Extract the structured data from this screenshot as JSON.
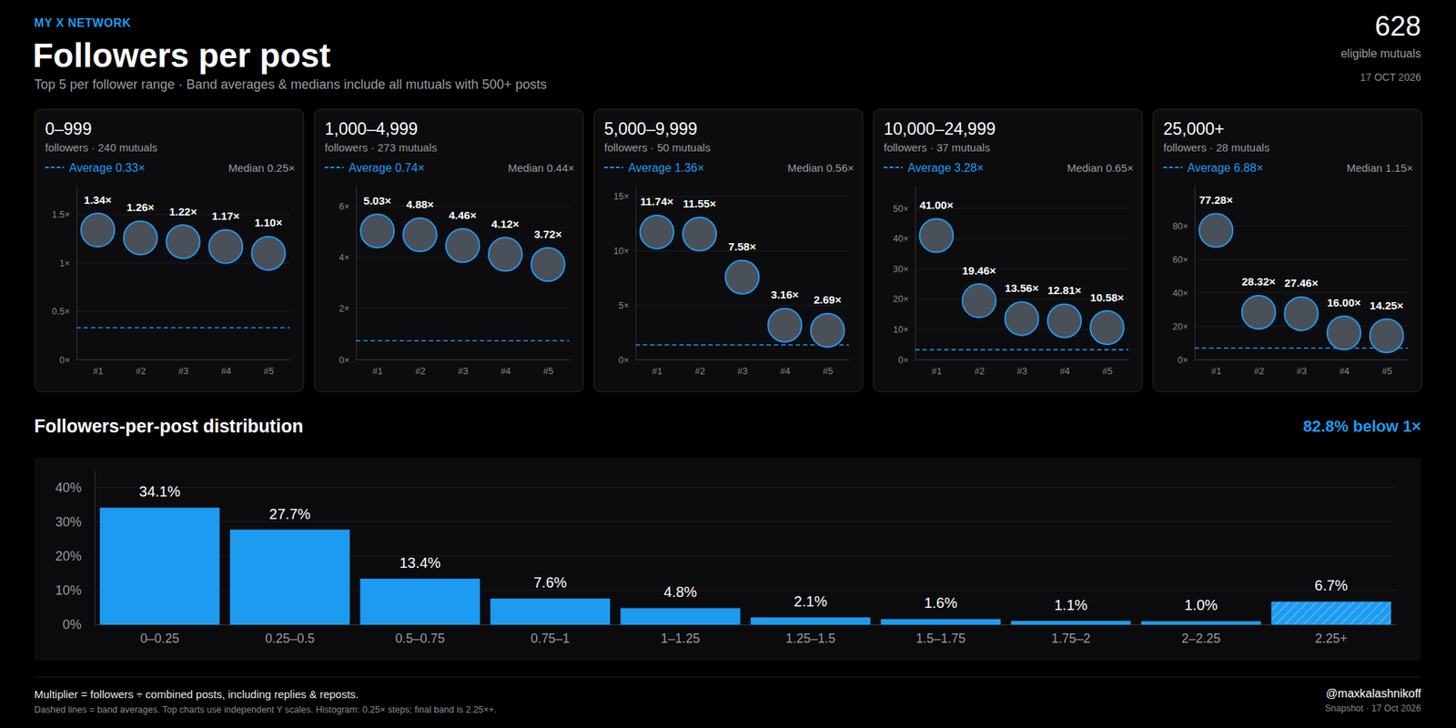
{
  "header": {
    "kicker": "MY X NETWORK",
    "title": "Followers per post",
    "subtitle": "Top 5 per follower range · Band averages & medians include all mutuals with 500+ posts",
    "count": 628,
    "count_label": "eligible mutuals",
    "date": "17 OCT 2026"
  },
  "chart_data": [
    {
      "type": "dot",
      "title": "0–999",
      "subtitle": "followers · 240 mutuals",
      "average": 0.33,
      "average_label": "Average 0.33×",
      "median_label": "Median 0.25×",
      "categories": [
        "#1",
        "#2",
        "#3",
        "#4",
        "#5"
      ],
      "values": [
        1.34,
        1.26,
        1.22,
        1.17,
        1.1
      ],
      "value_labels": [
        "1.34×",
        "1.26×",
        "1.22×",
        "1.17×",
        "1.10×"
      ],
      "ylim": [
        0,
        1.8
      ],
      "yticks": [
        {
          "value": 0,
          "label": "0×"
        },
        {
          "value": 0.5,
          "label": "0.5×"
        },
        {
          "value": 1,
          "label": "1×"
        },
        {
          "value": 1.5,
          "label": "1.5×"
        }
      ],
      "grid": true,
      "data_labels": true,
      "marker": "circle",
      "color": "#1d9bf0"
    },
    {
      "type": "dot",
      "title": "1,000–4,999",
      "subtitle": "followers · 273 mutuals",
      "average": 0.74,
      "average_label": "Average 0.74×",
      "median_label": "Median 0.44×",
      "categories": [
        "#1",
        "#2",
        "#3",
        "#4",
        "#5"
      ],
      "values": [
        5.03,
        4.88,
        4.46,
        4.12,
        3.72
      ],
      "value_labels": [
        "5.03×",
        "4.88×",
        "4.46×",
        "4.12×",
        "3.72×"
      ],
      "ylim": [
        0,
        6.8
      ],
      "yticks": [
        {
          "value": 0,
          "label": "0×"
        },
        {
          "value": 2,
          "label": "2×"
        },
        {
          "value": 4,
          "label": "4×"
        },
        {
          "value": 6,
          "label": "6×"
        }
      ],
      "grid": true,
      "data_labels": true,
      "marker": "circle",
      "color": "#1d9bf0"
    },
    {
      "type": "dot",
      "title": "5,000–9,999",
      "subtitle": "followers · 50 mutuals",
      "average": 1.36,
      "average_label": "Average 1.36×",
      "median_label": "Median 0.56×",
      "categories": [
        "#1",
        "#2",
        "#3",
        "#4",
        "#5"
      ],
      "values": [
        11.74,
        11.55,
        7.58,
        3.16,
        2.69
      ],
      "value_labels": [
        "11.74×",
        "11.55×",
        "7.58×",
        "3.16×",
        "2.69×"
      ],
      "ylim": [
        0,
        16
      ],
      "yticks": [
        {
          "value": 0,
          "label": "0×"
        },
        {
          "value": 5,
          "label": "5×"
        },
        {
          "value": 10,
          "label": "10×"
        },
        {
          "value": 15,
          "label": "15×"
        }
      ],
      "grid": true,
      "data_labels": true,
      "marker": "circle",
      "color": "#1d9bf0"
    },
    {
      "type": "dot",
      "title": "10,000–24,999",
      "subtitle": "followers · 37 mutuals",
      "average": 3.28,
      "average_label": "Average 3.28×",
      "median_label": "Median 0.65×",
      "categories": [
        "#1",
        "#2",
        "#3",
        "#4",
        "#5"
      ],
      "values": [
        41.0,
        19.46,
        13.56,
        12.81,
        10.58
      ],
      "value_labels": [
        "41.00×",
        "19.46×",
        "13.56×",
        "12.81×",
        "10.58×"
      ],
      "ylim": [
        0,
        57.5
      ],
      "yticks": [
        {
          "value": 0,
          "label": "0×"
        },
        {
          "value": 10,
          "label": "10×"
        },
        {
          "value": 20,
          "label": "20×"
        },
        {
          "value": 30,
          "label": "30×"
        },
        {
          "value": 40,
          "label": "40×"
        },
        {
          "value": 50,
          "label": "50×"
        }
      ],
      "grid": true,
      "data_labels": true,
      "marker": "circle",
      "color": "#1d9bf0"
    },
    {
      "type": "dot",
      "title": "25,000+",
      "subtitle": "followers · 28 mutuals",
      "average": 6.88,
      "average_label": "Average 6.88×",
      "median_label": "Median 1.15×",
      "categories": [
        "#1",
        "#2",
        "#3",
        "#4",
        "#5"
      ],
      "values": [
        77.28,
        28.32,
        27.46,
        16.0,
        14.25
      ],
      "value_labels": [
        "77.28×",
        "28.32×",
        "27.46×",
        "16.00×",
        "14.25×"
      ],
      "ylim": [
        0,
        104
      ],
      "yticks": [
        {
          "value": 0,
          "label": "0×"
        },
        {
          "value": 20,
          "label": "20×"
        },
        {
          "value": 40,
          "label": "40×"
        },
        {
          "value": 60,
          "label": "60×"
        },
        {
          "value": 80,
          "label": "80×"
        }
      ],
      "grid": true,
      "data_labels": true,
      "marker": "circle",
      "color": "#1d9bf0"
    },
    {
      "type": "bar",
      "title": "Followers-per-post distribution",
      "annotation": "82.8% below 1×",
      "categories": [
        "0–0.25",
        "0.25–0.5",
        "0.5–0.75",
        "0.75–1",
        "1–1.25",
        "1.25–1.5",
        "1.5–1.75",
        "1.75–2",
        "2–2.25",
        "2.25+"
      ],
      "values": [
        34.1,
        27.7,
        13.4,
        7.6,
        4.8,
        2.1,
        1.6,
        1.1,
        1.0,
        6.7
      ],
      "value_labels": [
        "34.1%",
        "27.7%",
        "13.4%",
        "7.6%",
        "4.8%",
        "2.1%",
        "1.6%",
        "1.1%",
        "1.0%",
        "6.7%"
      ],
      "ylim": [
        0,
        45
      ],
      "yticks": [
        {
          "value": 0,
          "label": "0%"
        },
        {
          "value": 10,
          "label": "10%"
        },
        {
          "value": 20,
          "label": "20%"
        },
        {
          "value": 30,
          "label": "30%"
        },
        {
          "value": 40,
          "label": "40%"
        }
      ],
      "grid": true,
      "data_labels": true,
      "color": "#1d9bf0"
    }
  ],
  "footer": {
    "note": "Multiplier = followers ÷ combined posts, including replies & reposts.",
    "fine_print": "Dashed lines = band averages. Top charts use independent Y scales. Histogram: 0.25× steps; final band is 2.25×+.",
    "handle": "@maxkalashnikoff",
    "snapshot": "Snapshot · 17 Oct 2026"
  }
}
